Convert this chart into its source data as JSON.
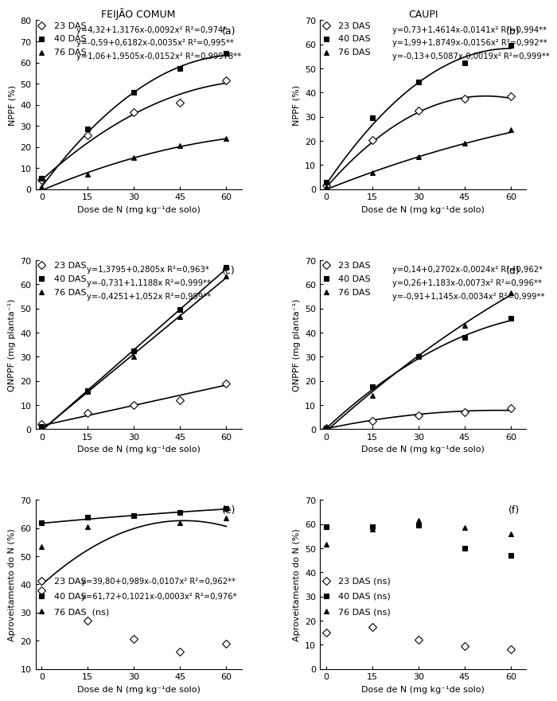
{
  "x_doses": [
    0,
    15,
    30,
    45,
    60
  ],
  "panel_a_title": "FEIJÃO COMUM",
  "panel_b_title": "CAUPI",
  "panel_a_label": "(a)",
  "panel_b_label": "(b)",
  "panel_c_label": "(c)",
  "panel_d_label": "(d)",
  "panel_e_label": "(e)",
  "panel_f_label": "(f)",
  "a_23das": [
    4.5,
    25.5,
    36.5,
    41.0,
    51.5
  ],
  "a_40das": [
    5.0,
    28.5,
    46.0,
    57.0,
    64.5
  ],
  "a_76das": [
    1.0,
    7.0,
    15.0,
    20.5,
    24.0
  ],
  "a_eq23": "y=4,32+1,3176x-0,0092x² R²=0,974*",
  "a_eq40": "y=-0,59+0,6182x-0,0035x² R²=0,995**",
  "a_eq76": "y=1,06+1,9505x-0,0152x² R²=0,99978**",
  "a_ylim": [
    0,
    80
  ],
  "a_yticks": [
    0,
    10,
    20,
    30,
    40,
    50,
    60,
    70,
    80
  ],
  "b_23das": [
    1.5,
    20.5,
    32.5,
    37.5,
    38.5
  ],
  "b_40das": [
    3.0,
    29.5,
    44.5,
    52.5,
    59.5
  ],
  "b_76das": [
    1.0,
    7.0,
    13.5,
    19.0,
    24.5
  ],
  "b_eq23": "y=0,73+1,4614x-0,0141x² R²=0,994**",
  "b_eq40": "y=1,99+1,8749x-0,0156x² R²=0,992**",
  "b_eq76": "y=-0,13+0,5087x-0,0019x² R²=0,999**",
  "b_ylim": [
    0,
    70
  ],
  "b_yticks": [
    0,
    10,
    20,
    30,
    40,
    50,
    60,
    70
  ],
  "c_23das": [
    2.0,
    6.5,
    10.0,
    12.0,
    19.0
  ],
  "c_40das": [
    1.0,
    16.0,
    32.5,
    49.5,
    67.0
  ],
  "c_76das": [
    0.5,
    15.5,
    30.0,
    46.5,
    63.5
  ],
  "c_eq23": "y=1,3795+0,2805x R²=0,963*",
  "c_eq40": "y=-0,731+1,1188x R²=0,999**",
  "c_eq76": "y=-0,4251+1,052x R²=0,999**",
  "c_ylim": [
    0,
    70
  ],
  "c_yticks": [
    0,
    10,
    20,
    30,
    40,
    50,
    60,
    70
  ],
  "d_23das": [
    0.5,
    3.5,
    5.5,
    7.0,
    8.5
  ],
  "d_40das": [
    0.5,
    17.5,
    30.0,
    38.0,
    46.0
  ],
  "d_76das": [
    0.5,
    14.0,
    30.5,
    43.0,
    56.5
  ],
  "d_eq23": "y=0,14+0,2702x-0,0024x² R²=0,962*",
  "d_eq40": "y=0,26+1,183x-0,0073x² R²=0,996**",
  "d_eq76": "y=-0,91+1,145x-0,0034x² R²=0,999**",
  "d_ylim": [
    0,
    70
  ],
  "d_yticks": [
    0,
    10,
    20,
    30,
    40,
    50,
    60,
    70
  ],
  "e_23das": [
    38.0,
    27.0,
    20.5,
    16.0,
    19.0
  ],
  "e_40das": [
    62.0,
    64.0,
    64.5,
    65.5,
    67.0
  ],
  "e_76das": [
    53.5,
    60.5,
    64.5,
    62.0,
    63.5
  ],
  "e_eq23": "y=39,80+0,989x-0,0107x² R²=0,962**",
  "e_eq40": "y=61,72+0,1021x-0,0003x² R²=0,976*",
  "e_ylim": [
    10,
    70
  ],
  "e_yticks": [
    10,
    20,
    30,
    40,
    50,
    60,
    70
  ],
  "f_23das": [
    15.0,
    17.5,
    12.0,
    9.5,
    8.0
  ],
  "f_40das": [
    59.0,
    59.0,
    59.5,
    50.0,
    47.0
  ],
  "f_76das": [
    51.5,
    58.0,
    61.5,
    58.5,
    56.0
  ],
  "f_ylim": [
    0,
    70
  ],
  "f_yticks": [
    0,
    10,
    20,
    30,
    40,
    50,
    60,
    70
  ],
  "xlabel": "Dose de N (mg kg⁻¹de solo)",
  "ylabel_ab": "NPPF (%)",
  "ylabel_cd": "QNPPF (mg planta⁻¹)",
  "ylabel_ef": "Aproveitamento do N (%)",
  "color": "black",
  "linewidth": 1.2,
  "markersize": 5,
  "fontsize_tick": 8,
  "fontsize_label": 8,
  "fontsize_eq": 7.2,
  "fontsize_title": 9,
  "fontsize_legend": 8
}
